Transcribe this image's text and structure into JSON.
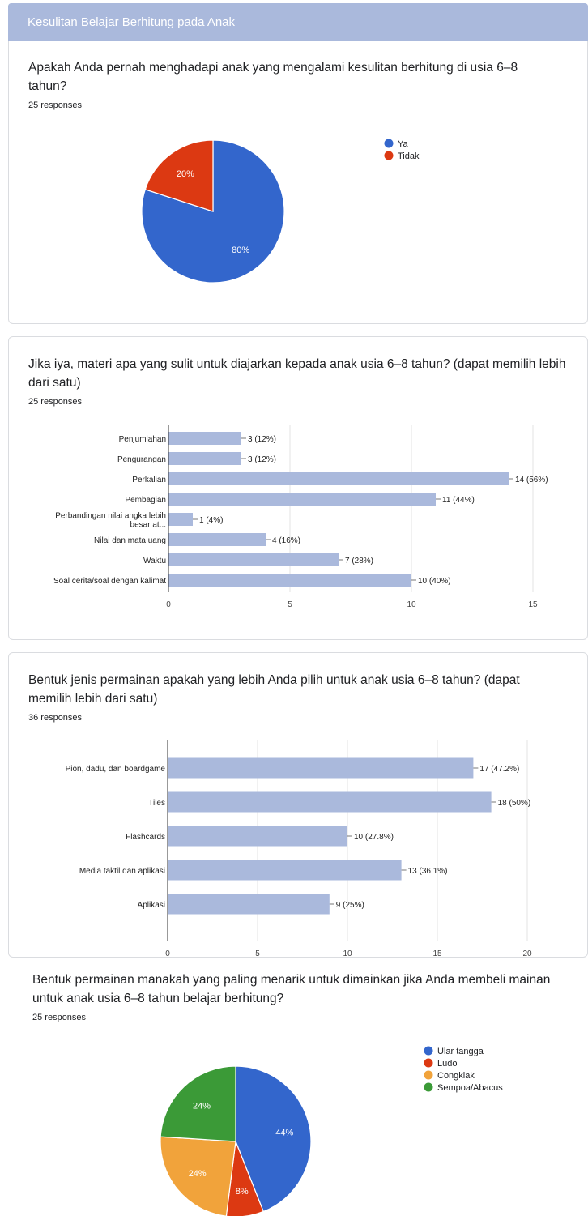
{
  "header": {
    "title": "Kesulitan Belajar Berhitung pada Anak"
  },
  "q1": {
    "text": "Apakah Anda pernah menghadapi anak yang mengalami kesulitan berhitung di usia 6–8 tahun?",
    "responses": "25 responses"
  },
  "q2": {
    "text": "Jika iya, materi apa yang sulit untuk diajarkan kepada anak usia 6–8 tahun? (dapat memilih lebih dari satu)",
    "responses": "25 responses"
  },
  "q3": {
    "text": "Bentuk jenis permainan apakah yang lebih Anda pilih untuk anak usia 6–8 tahun? (dapat memilih lebih dari satu)",
    "responses": "36 responses"
  },
  "q4": {
    "text": "Bentuk permainan manakah yang paling menarik untuk dimainkan jika Anda membeli mainan untuk anak usia 6–8 tahun belajar berhitung?",
    "responses": "25 responses"
  },
  "chart_data": [
    {
      "type": "pie",
      "categories": [
        "Ya",
        "Tidak"
      ],
      "values": [
        80,
        20
      ],
      "labels": [
        "80%",
        "20%"
      ],
      "colors": [
        "#3366cc",
        "#dc3912"
      ],
      "legend": "right"
    },
    {
      "type": "bar",
      "orientation": "horizontal",
      "categories": [
        "Penjumlahan",
        "Pengurangan",
        "Perkalian",
        "Pembagian",
        "Perbandingan nilai angka lebih besar at...",
        "Nilai dan mata uang",
        "Waktu",
        "Soal cerita/soal dengan kalimat"
      ],
      "category_lines": [
        [
          "Penjumlahan"
        ],
        [
          "Pengurangan"
        ],
        [
          "Perkalian"
        ],
        [
          "Pembagian"
        ],
        [
          "Perbandingan nilai angka lebih",
          "besar at..."
        ],
        [
          "Nilai dan mata uang"
        ],
        [
          "Waktu"
        ],
        [
          "Soal cerita/soal dengan kalimat"
        ]
      ],
      "values": [
        3,
        3,
        14,
        11,
        1,
        4,
        7,
        10
      ],
      "data_labels": [
        "3 (12%)",
        "3 (12%)",
        "14 (56%)",
        "11 (44%)",
        "1 (4%)",
        "4 (16%)",
        "7 (28%)",
        "10 (40%)"
      ],
      "xlim": [
        0,
        15
      ],
      "xticks": [
        0,
        5,
        10,
        15
      ],
      "color": "#aab9dc",
      "grid": true
    },
    {
      "type": "bar",
      "orientation": "horizontal",
      "categories": [
        "Pion, dadu, dan boardgame",
        "Tiles",
        "Flashcards",
        "Media taktil dan aplikasi",
        "Aplikasi"
      ],
      "category_lines": [
        [
          "Pion, dadu, dan boardgame"
        ],
        [
          "Tiles"
        ],
        [
          "Flashcards"
        ],
        [
          "Media taktil dan aplikasi"
        ],
        [
          "Aplikasi"
        ]
      ],
      "values": [
        17,
        18,
        10,
        13,
        9
      ],
      "data_labels": [
        "17 (47.2%)",
        "18 (50%)",
        "10 (27.8%)",
        "13 (36.1%)",
        "9 (25%)"
      ],
      "xlim": [
        0,
        20
      ],
      "xticks": [
        0,
        5,
        10,
        15,
        20
      ],
      "color": "#aab9dc",
      "grid": true
    },
    {
      "type": "pie",
      "categories": [
        "Ular tangga",
        "Ludo",
        "Congklak",
        "Sempoa/Abacus"
      ],
      "values": [
        44,
        8,
        24,
        24
      ],
      "labels": [
        "44%",
        "8%",
        "24%",
        "24%"
      ],
      "colors": [
        "#3366cc",
        "#dc3912",
        "#f1a33b",
        "#3b9a37"
      ],
      "legend": "right"
    }
  ]
}
